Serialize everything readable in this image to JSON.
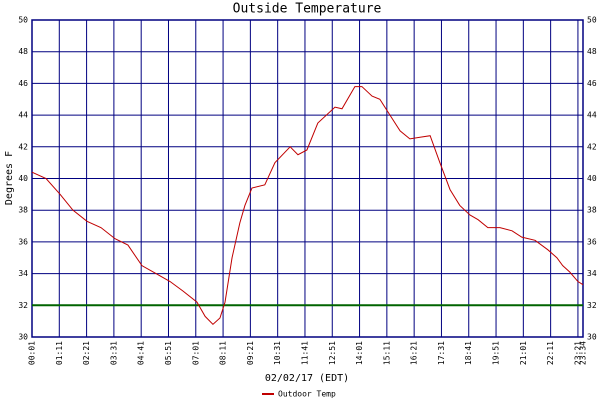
{
  "chart_data": {
    "type": "line",
    "title": "Outside Temperature",
    "ylabel": "Degrees F",
    "xlabel": "02/02/17 (EDT)",
    "ylim": [
      30,
      50
    ],
    "yticks": [
      30,
      32,
      34,
      36,
      38,
      40,
      42,
      44,
      46,
      48,
      50
    ],
    "xlim": [
      1,
      1414
    ],
    "xticks": [
      {
        "value": 1,
        "label": "00:01"
      },
      {
        "value": 71,
        "label": "01:11"
      },
      {
        "value": 141,
        "label": "02:21"
      },
      {
        "value": 211,
        "label": "03:31"
      },
      {
        "value": 281,
        "label": "04:41"
      },
      {
        "value": 351,
        "label": "05:51"
      },
      {
        "value": 421,
        "label": "07:01"
      },
      {
        "value": 491,
        "label": "08:11"
      },
      {
        "value": 561,
        "label": "09:21"
      },
      {
        "value": 631,
        "label": "10:31"
      },
      {
        "value": 701,
        "label": "11:41"
      },
      {
        "value": 771,
        "label": "12:51"
      },
      {
        "value": 841,
        "label": "14:01"
      },
      {
        "value": 911,
        "label": "15:11"
      },
      {
        "value": 981,
        "label": "16:21"
      },
      {
        "value": 1051,
        "label": "17:31"
      },
      {
        "value": 1121,
        "label": "18:41"
      },
      {
        "value": 1191,
        "label": "19:51"
      },
      {
        "value": 1261,
        "label": "21:01"
      },
      {
        "value": 1331,
        "label": "22:11"
      },
      {
        "value": 1401,
        "label": "23:21"
      },
      {
        "value": 1414,
        "label": "23:34"
      }
    ],
    "grid": true,
    "grid_color": "#000080",
    "reference_line": {
      "value": 32,
      "color": "#006400"
    },
    "legend": "bottom",
    "x": [
      1,
      37,
      73,
      106,
      142,
      178,
      214,
      247,
      283,
      319,
      355,
      388,
      424,
      445,
      465,
      483,
      496,
      514,
      534,
      547,
      565,
      598,
      624,
      663,
      683,
      706,
      734,
      778,
      796,
      829,
      847,
      873,
      893,
      919,
      945,
      970,
      996,
      1022,
      1047,
      1073,
      1098,
      1124,
      1145,
      1170,
      1201,
      1232,
      1257,
      1291,
      1324,
      1347,
      1362,
      1380,
      1401,
      1414
    ],
    "series": [
      {
        "name": "Outdoor Temp",
        "color": "#c00000",
        "values": [
          40.4,
          40.0,
          39.0,
          38.0,
          37.3,
          36.9,
          36.2,
          35.8,
          34.5,
          34.0,
          33.5,
          32.9,
          32.2,
          31.3,
          30.8,
          31.2,
          32.2,
          35.0,
          37.2,
          38.3,
          39.4,
          39.6,
          41.0,
          42.0,
          41.5,
          41.8,
          43.5,
          44.5,
          44.4,
          45.8,
          45.8,
          45.2,
          45.0,
          44.0,
          43.0,
          42.5,
          42.6,
          42.7,
          41.0,
          39.3,
          38.3,
          37.7,
          37.4,
          36.9,
          36.9,
          36.7,
          36.3,
          36.1,
          35.5,
          35.0,
          34.5,
          34.1,
          33.5,
          33.3
        ]
      }
    ]
  }
}
